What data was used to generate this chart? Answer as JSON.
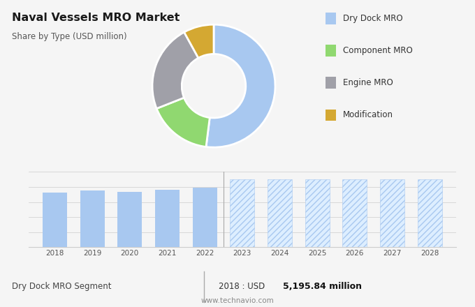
{
  "title": "Naval Vessels MRO Market",
  "subtitle": "Share by Type (USD million)",
  "pie_values": [
    52,
    17,
    23,
    8
  ],
  "pie_colors": [
    "#a8c8f0",
    "#90d870",
    "#a0a0a8",
    "#d4a832"
  ],
  "pie_labels": [
    "Dry Dock MRO",
    "Component MRO",
    "Engine MRO",
    "Modification"
  ],
  "bar_years_hist": [
    2018,
    2019,
    2020,
    2021,
    2022
  ],
  "bar_values_hist": [
    5.2,
    5.45,
    5.28,
    5.5,
    5.72
  ],
  "bar_years_forecast": [
    2023,
    2024,
    2025,
    2026,
    2027,
    2028
  ],
  "bar_color_hist": "#a8c8f0",
  "bar_color_forecast_face": "#ddeeff",
  "bar_color_forecast_edge": "#a8c8f0",
  "bar_hatch": "////",
  "forecast_bar_height": 6.5,
  "footer_left": "Dry Dock MRO Segment",
  "footer_mid": "2018 : USD ",
  "footer_value": "5,195.84 million",
  "footer_url": "www.technavio.com",
  "bg_top": "#e4e4e4",
  "bg_bottom": "#f5f5f5",
  "bar_ylim": [
    0,
    7.2
  ]
}
